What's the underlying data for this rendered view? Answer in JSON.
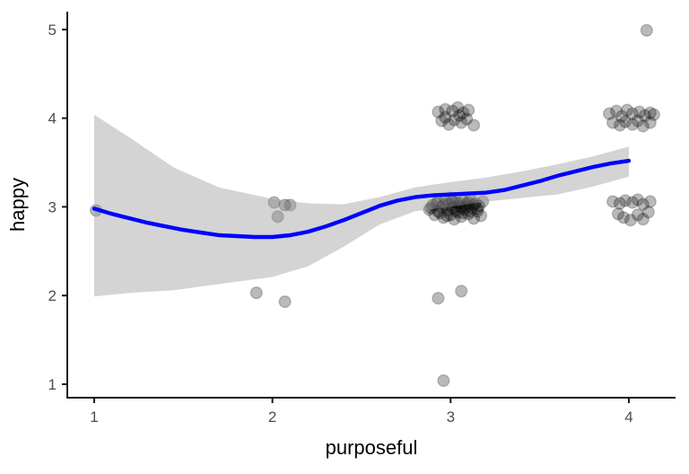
{
  "figure": {
    "background": "#ffffff",
    "colors": {
      "smooth_line": "#0000ff",
      "ribbon_fill": "#999999",
      "ribbon_alpha": 0.42,
      "point_fill": "#000000",
      "point_fill_alpha": 0.27,
      "point_stroke_alpha": 0.2,
      "axis_line": "#1a1a1a",
      "tick_label": "#4d4d4d",
      "axis_title": "#000000"
    }
  },
  "chart_data": {
    "type": "scatter",
    "title": "",
    "xlabel": "purposeful",
    "ylabel": "happy",
    "xlim": [
      0.849,
      4.262
    ],
    "ylim": [
      0.848,
      5.201
    ],
    "x_ticks": [
      1,
      2,
      3,
      4
    ],
    "y_ticks": [
      1,
      2,
      3,
      4,
      5
    ],
    "grid": false,
    "legend": false,
    "marker_radius_px": 6.4,
    "points": [
      [
        1.01,
        2.96
      ],
      [
        1.91,
        2.03
      ],
      [
        2.07,
        1.93
      ],
      [
        2.01,
        3.05
      ],
      [
        2.07,
        3.02
      ],
      [
        2.1,
        3.02
      ],
      [
        2.03,
        2.89
      ],
      [
        2.93,
        1.97
      ],
      [
        3.06,
        2.05
      ],
      [
        2.96,
        1.04
      ],
      [
        4.1,
        4.99
      ],
      [
        2.93,
        4.07
      ],
      [
        2.97,
        4.1
      ],
      [
        3.01,
        4.08
      ],
      [
        3.04,
        4.12
      ],
      [
        3.07,
        4.06
      ],
      [
        3.1,
        4.09
      ],
      [
        2.95,
        3.97
      ],
      [
        2.99,
        3.93
      ],
      [
        3.02,
        3.98
      ],
      [
        3.06,
        3.95
      ],
      [
        3.09,
        3.99
      ],
      [
        3.13,
        3.92
      ],
      [
        2.97,
        4.01
      ],
      [
        3.05,
        4.03
      ],
      [
        3.89,
        4.05
      ],
      [
        3.93,
        4.08
      ],
      [
        3.96,
        4.02
      ],
      [
        3.99,
        4.09
      ],
      [
        4.02,
        4.05
      ],
      [
        4.06,
        4.07
      ],
      [
        4.09,
        4.03
      ],
      [
        4.12,
        4.06
      ],
      [
        3.91,
        3.95
      ],
      [
        3.95,
        3.92
      ],
      [
        3.98,
        3.96
      ],
      [
        4.02,
        3.93
      ],
      [
        4.05,
        3.97
      ],
      [
        4.08,
        3.91
      ],
      [
        4.12,
        3.95
      ],
      [
        4.14,
        4.04
      ],
      [
        3.91,
        3.06
      ],
      [
        3.95,
        3.04
      ],
      [
        3.98,
        3.07
      ],
      [
        4.02,
        3.05
      ],
      [
        4.05,
        3.08
      ],
      [
        4.08,
        3.03
      ],
      [
        4.12,
        3.06
      ],
      [
        3.94,
        2.92
      ],
      [
        3.97,
        2.88
      ],
      [
        4.01,
        2.85
      ],
      [
        4.05,
        2.91
      ],
      [
        4.08,
        2.86
      ],
      [
        4.11,
        2.94
      ],
      [
        2.88,
        2.97
      ],
      [
        2.9,
        3.02
      ],
      [
        2.91,
        2.91
      ],
      [
        2.93,
        3.06
      ],
      [
        2.93,
        2.95
      ],
      [
        2.95,
        3.0
      ],
      [
        2.96,
        2.88
      ],
      [
        2.97,
        3.08
      ],
      [
        2.98,
        2.96
      ],
      [
        2.99,
        3.03
      ],
      [
        3.0,
        2.91
      ],
      [
        3.0,
        3.1
      ],
      [
        3.01,
        2.98
      ],
      [
        3.02,
        2.86
      ],
      [
        3.03,
        3.05
      ],
      [
        3.04,
        2.94
      ],
      [
        3.05,
        3.01
      ],
      [
        3.06,
        2.89
      ],
      [
        3.07,
        3.07
      ],
      [
        3.08,
        2.97
      ],
      [
        3.09,
        3.03
      ],
      [
        3.1,
        2.92
      ],
      [
        3.11,
        3.09
      ],
      [
        3.12,
        2.99
      ],
      [
        3.13,
        2.87
      ],
      [
        3.14,
        3.04
      ],
      [
        3.15,
        2.95
      ],
      [
        3.16,
        3.01
      ],
      [
        3.17,
        2.9
      ],
      [
        3.18,
        3.06
      ],
      [
        2.89,
        2.99
      ],
      [
        2.92,
        3.04
      ],
      [
        2.94,
        2.93
      ],
      [
        2.96,
        3.02
      ],
      [
        2.98,
        2.9
      ],
      [
        3.01,
        3.06
      ],
      [
        3.03,
        2.96
      ],
      [
        3.05,
        3.04
      ],
      [
        3.07,
        2.93
      ],
      [
        3.09,
        3.0
      ],
      [
        3.11,
        2.95
      ],
      [
        3.13,
        3.02
      ],
      [
        3.15,
        2.98
      ],
      [
        3.02,
        3.0
      ],
      [
        3.06,
        2.99
      ],
      [
        3.1,
        3.05
      ]
    ],
    "smooth_line": {
      "name": "loess-smooth",
      "x": [
        1.0,
        1.1,
        1.2,
        1.3,
        1.4,
        1.5,
        1.6,
        1.7,
        1.8,
        1.9,
        2.0,
        2.1,
        2.2,
        2.3,
        2.4,
        2.5,
        2.6,
        2.7,
        2.8,
        2.9,
        3.0,
        3.1,
        3.2,
        3.3,
        3.4,
        3.5,
        3.6,
        3.7,
        3.8,
        3.9,
        4.0
      ],
      "y": [
        2.98,
        2.92,
        2.87,
        2.82,
        2.78,
        2.74,
        2.71,
        2.68,
        2.67,
        2.66,
        2.66,
        2.68,
        2.72,
        2.78,
        2.85,
        2.93,
        3.01,
        3.07,
        3.11,
        3.13,
        3.14,
        3.15,
        3.16,
        3.19,
        3.24,
        3.29,
        3.35,
        3.4,
        3.45,
        3.49,
        3.52
      ]
    },
    "ribbon": {
      "name": "confidence-band",
      "x": [
        1.0,
        1.2,
        1.45,
        1.7,
        2.0,
        2.2,
        2.4,
        2.6,
        2.8,
        3.0,
        3.2,
        3.4,
        3.6,
        3.8,
        4.0
      ],
      "upper": [
        4.04,
        3.78,
        3.44,
        3.22,
        3.09,
        3.04,
        3.03,
        3.11,
        3.22,
        3.28,
        3.33,
        3.4,
        3.48,
        3.57,
        3.68
      ],
      "lower": [
        1.99,
        2.03,
        2.06,
        2.13,
        2.21,
        2.33,
        2.55,
        2.8,
        2.95,
        3.0,
        3.06,
        3.1,
        3.14,
        3.23,
        3.34
      ]
    }
  }
}
